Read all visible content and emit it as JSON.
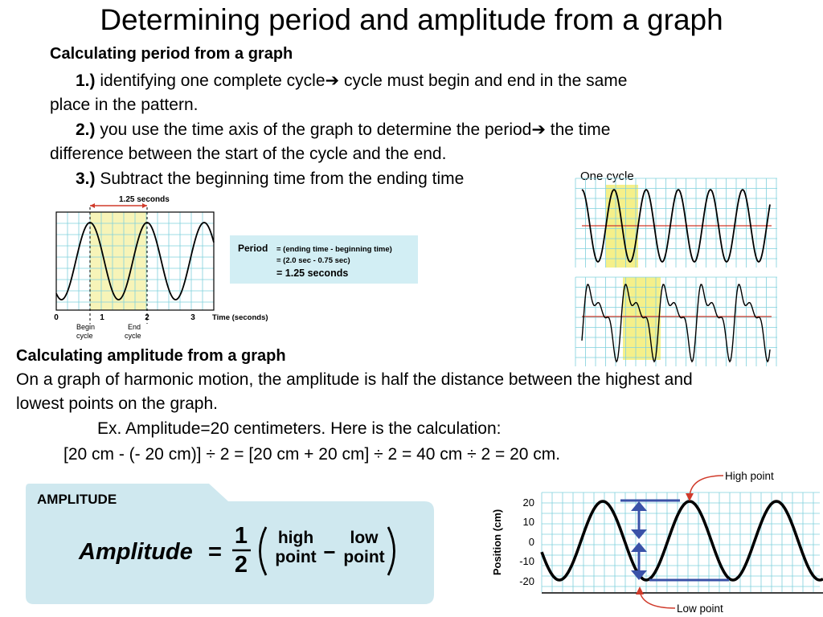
{
  "slide": {
    "title": "Determining period and amplitude from a graph",
    "period_heading": "Calculating period from a graph",
    "steps": [
      {
        "num": "1.)",
        "line1": " identifying one complete cycle➔ cycle must begin and end in the same",
        "line2": "place in the pattern."
      },
      {
        "num": "2.)",
        "line1": " you use the time axis of the graph to determine the period➔ the time",
        "line2": "difference between the start of the cycle and the end."
      },
      {
        "num": "3.)",
        "line1": " Subtract the beginning time from the ending time"
      }
    ],
    "amplitude_heading": "Calculating amplitude from a graph",
    "amplitude_text_1": "On a graph of harmonic motion, the amplitude is half the distance between the highest and",
    "amplitude_text_2": "lowest points on the graph.",
    "example_line": "Ex. Amplitude=20 centimeters. Here is the calculation:",
    "calc_line": "[20 cm - (- 20 cm)] ÷ 2 = [20 cm + 20 cm] ÷ 2 = 40 cm ÷ 2 = 20 cm."
  },
  "period_graph": {
    "span_label": "1.25 seconds",
    "x_ticks": [
      "0",
      "1",
      "2",
      "3"
    ],
    "axis_label": "Time (seconds)",
    "begin_label": [
      "Begin",
      "cycle"
    ],
    "end_label": [
      "End",
      "cycle"
    ]
  },
  "period_box": {
    "label": "Period",
    "line1": "= (ending time - beginning time)",
    "line2": "= (2.0 sec - 0.75 sec)",
    "line3": "= 1.25 seconds"
  },
  "cycle_graphs": {
    "label": "One cycle"
  },
  "amplitude_card": {
    "tab": "AMPLITUDE",
    "lhs": "Amplitude",
    "eq": "=",
    "numerator": "1",
    "denominator": "2",
    "high": [
      "high",
      "point"
    ],
    "minus": "−",
    "low": [
      "low",
      "point"
    ]
  },
  "position_graph": {
    "ylabel": "Position (cm)",
    "y_ticks": [
      "20",
      "10",
      "0",
      "-10",
      "-20"
    ],
    "high_label": "High point",
    "low_label": "Low point"
  },
  "colors": {
    "grid": "#7fd0dc",
    "highlight": "#f5f08a",
    "box": "#d2eef4",
    "card": "#cfe8ef",
    "marker": "#3a52a8",
    "pointer": "#d03a2a"
  }
}
